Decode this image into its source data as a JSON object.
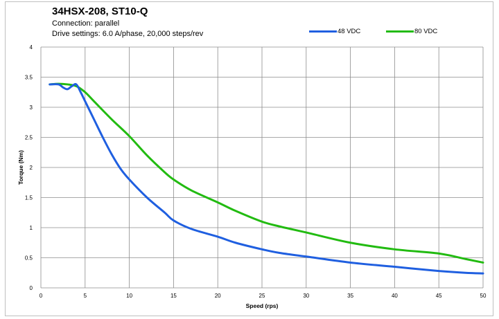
{
  "header": {
    "title": "34HSX-208, ST10-Q",
    "line1": "Connection: parallel",
    "line2": "Drive settings: 6.0 A/phase, 20,000 steps/rev"
  },
  "chart_data": {
    "type": "line",
    "title": "34HSX-208, ST10-Q",
    "subtitle": [
      "Connection: parallel",
      "Drive settings: 6.0 A/phase, 20,000 steps/rev"
    ],
    "xlabel": "Speed (rps)",
    "ylabel": "Torque (Nm)",
    "xlim": [
      0,
      50
    ],
    "ylim": [
      0,
      4
    ],
    "xticks": [
      0,
      5,
      10,
      15,
      20,
      25,
      30,
      35,
      40,
      45,
      50
    ],
    "yticks": [
      0,
      0.5,
      1,
      1.5,
      2,
      2.5,
      3,
      3.5,
      4
    ],
    "xtick_labels": [
      "0",
      "5",
      "10",
      "15",
      "20",
      "25",
      "30",
      "35",
      "40",
      "45",
      "50"
    ],
    "ytick_labels": [
      "0",
      "0.5",
      "1",
      "1.5",
      "2",
      "2.5",
      "3",
      "3.5",
      "4"
    ],
    "grid": true,
    "legend_position": "top-right",
    "series": [
      {
        "name": "48 VDC",
        "color": "#1f5fe0",
        "points": [
          [
            1,
            3.38
          ],
          [
            2,
            3.38
          ],
          [
            2.5,
            3.33
          ],
          [
            3,
            3.3
          ],
          [
            3.5,
            3.35
          ],
          [
            4,
            3.38
          ],
          [
            4.5,
            3.25
          ],
          [
            5,
            3.1
          ],
          [
            6,
            2.8
          ],
          [
            7,
            2.5
          ],
          [
            8,
            2.22
          ],
          [
            9,
            1.98
          ],
          [
            10,
            1.8
          ],
          [
            12,
            1.5
          ],
          [
            14,
            1.25
          ],
          [
            15,
            1.12
          ],
          [
            17,
            0.98
          ],
          [
            20,
            0.85
          ],
          [
            22,
            0.75
          ],
          [
            25,
            0.64
          ],
          [
            27,
            0.58
          ],
          [
            30,
            0.52
          ],
          [
            35,
            0.42
          ],
          [
            40,
            0.35
          ],
          [
            45,
            0.28
          ],
          [
            48,
            0.25
          ],
          [
            50,
            0.24
          ]
        ]
      },
      {
        "name": "80 VDC",
        "color": "#22bb11",
        "points": [
          [
            1,
            3.38
          ],
          [
            2,
            3.39
          ],
          [
            3,
            3.38
          ],
          [
            4,
            3.35
          ],
          [
            5,
            3.25
          ],
          [
            6,
            3.1
          ],
          [
            8,
            2.8
          ],
          [
            10,
            2.52
          ],
          [
            12,
            2.2
          ],
          [
            14,
            1.92
          ],
          [
            15,
            1.8
          ],
          [
            17,
            1.62
          ],
          [
            20,
            1.42
          ],
          [
            22,
            1.28
          ],
          [
            25,
            1.1
          ],
          [
            27,
            1.02
          ],
          [
            30,
            0.92
          ],
          [
            35,
            0.75
          ],
          [
            40,
            0.64
          ],
          [
            45,
            0.57
          ],
          [
            48,
            0.48
          ],
          [
            50,
            0.42
          ]
        ]
      }
    ]
  }
}
